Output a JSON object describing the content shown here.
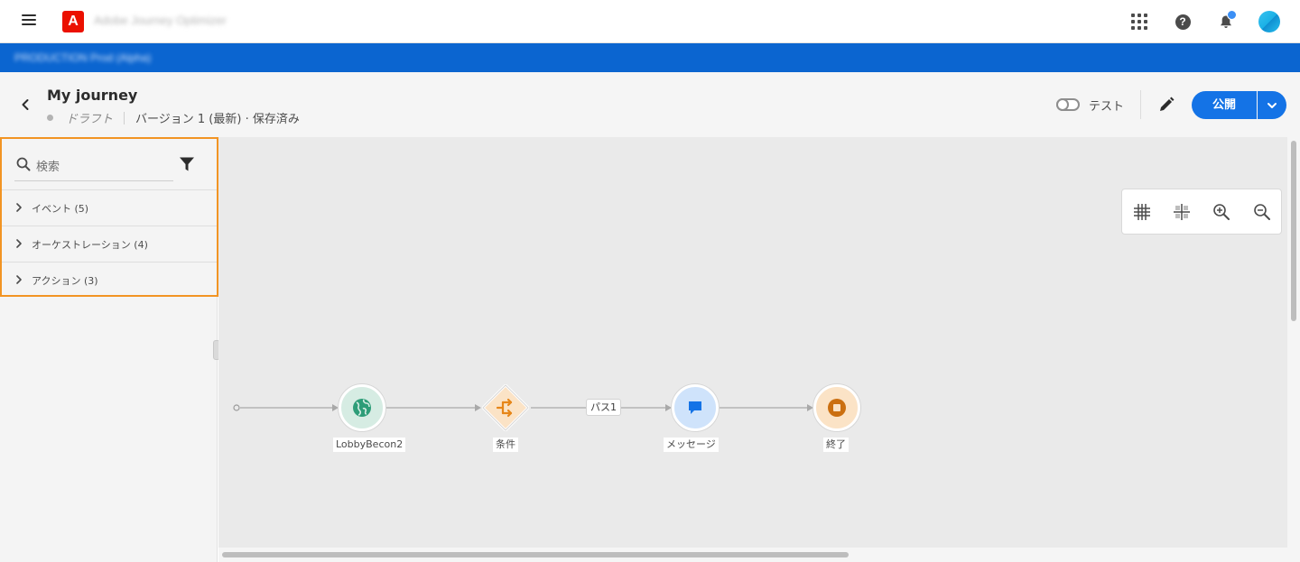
{
  "app": {
    "name": "Adobe Journey Optimizer",
    "logo_letter": "A",
    "brand_color": "#eb1000",
    "accent_color": "#1473e6"
  },
  "top_icons": [
    "apps-grid-icon",
    "help-icon",
    "notifications-icon",
    "avatar"
  ],
  "breadcrumb": "PRODUCTION   Prod (Alpha)",
  "journey": {
    "title": "My journey",
    "status": "ドラフト",
    "version": "バージョン 1 (最新) · 保存済み",
    "test_label": "テスト",
    "test_on": false,
    "publish_label": "公開"
  },
  "palette": {
    "search_placeholder": "検索",
    "categories": [
      {
        "label": "イベント (5)"
      },
      {
        "label": "オーケストレーション (4)"
      },
      {
        "label": "アクション (3)"
      }
    ]
  },
  "canvas_tools": [
    "grid-icon",
    "align-icon",
    "zoom-in-icon",
    "zoom-out-icon"
  ],
  "flow": {
    "nodes": [
      {
        "label": "LobbyBecon2",
        "type": "event",
        "color": "#2d9d78"
      },
      {
        "label": "条件",
        "type": "condition",
        "color": "#e68619"
      },
      {
        "label": "メッセージ",
        "type": "message",
        "color": "#1473e6"
      },
      {
        "label": "終了",
        "type": "end",
        "color": "#cb6f10"
      }
    ],
    "path_label": "パス1"
  }
}
